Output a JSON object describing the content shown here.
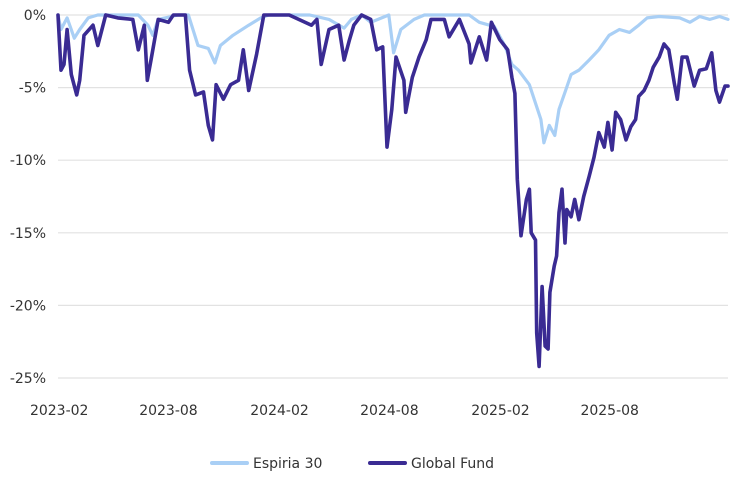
{
  "chart_data": {
    "type": "line",
    "title": "",
    "xlabel": "",
    "ylabel": "",
    "ylim": [
      -25,
      0
    ],
    "y_ticks": [
      0,
      -5,
      -10,
      -15,
      -20,
      -25
    ],
    "y_tick_labels": [
      "0%",
      "-5%",
      "-10%",
      "-15%",
      "-20%",
      "-25%"
    ],
    "x_ticks": [
      "2023-02-01",
      "2023-08-01",
      "2024-02-01",
      "2024-08-01",
      "2025-02-01",
      "2025-08-01"
    ],
    "x_tick_labels": [
      "2023-02",
      "2023-08",
      "2024-02",
      "2024-08",
      "2025-02",
      "2025-08"
    ],
    "xlim": [
      "2023-01-30",
      "2026-02-13"
    ],
    "grid": "horizontal",
    "legend_position": "bottom",
    "series": [
      {
        "name": "Espiria 30",
        "color": "#a9cff5",
        "points": [
          [
            "2023-01-30",
            0
          ],
          [
            "2023-02-04",
            -1.0
          ],
          [
            "2023-02-14",
            -0.2
          ],
          [
            "2023-02-26",
            -1.6
          ],
          [
            "2023-03-07",
            -1.0
          ],
          [
            "2023-03-21",
            -0.2
          ],
          [
            "2023-04-06",
            0
          ],
          [
            "2023-06-12",
            0
          ],
          [
            "2023-06-28",
            -0.7
          ],
          [
            "2023-07-06",
            -1.4
          ],
          [
            "2023-07-15",
            -0.3
          ],
          [
            "2023-08-17",
            0
          ],
          [
            "2023-09-03",
            0
          ],
          [
            "2023-09-19",
            -2.1
          ],
          [
            "2023-10-06",
            -2.3
          ],
          [
            "2023-10-17",
            -3.3
          ],
          [
            "2023-10-26",
            -2.1
          ],
          [
            "2023-11-16",
            -1.4
          ],
          [
            "2023-12-12",
            -0.7
          ],
          [
            "2024-01-01",
            -0.2
          ],
          [
            "2024-01-14",
            0
          ],
          [
            "2024-03-22",
            0
          ],
          [
            "2024-04-23",
            -0.3
          ],
          [
            "2024-05-18",
            -0.9
          ],
          [
            "2024-05-30",
            -0.3
          ],
          [
            "2024-06-16",
            0
          ],
          [
            "2024-07-01",
            -0.5
          ],
          [
            "2024-07-31",
            0
          ],
          [
            "2024-08-08",
            -2.6
          ],
          [
            "2024-08-20",
            -1.0
          ],
          [
            "2024-09-11",
            -0.3
          ],
          [
            "2024-09-28",
            0
          ],
          [
            "2024-12-11",
            0
          ],
          [
            "2024-12-28",
            -0.5
          ],
          [
            "2025-01-22",
            -0.8
          ],
          [
            "2025-02-08",
            -2.1
          ],
          [
            "2025-02-20",
            -3.4
          ],
          [
            "2025-03-03",
            -3.8
          ],
          [
            "2025-03-21",
            -4.8
          ],
          [
            "2025-04-01",
            -6.2
          ],
          [
            "2025-04-09",
            -7.2
          ],
          [
            "2025-04-14",
            -8.8
          ],
          [
            "2025-04-23",
            -7.6
          ],
          [
            "2025-05-02",
            -8.3
          ],
          [
            "2025-05-09",
            -6.5
          ],
          [
            "2025-05-20",
            -5.2
          ],
          [
            "2025-05-29",
            -4.1
          ],
          [
            "2025-06-11",
            -3.8
          ],
          [
            "2025-06-28",
            -3.1
          ],
          [
            "2025-07-14",
            -2.4
          ],
          [
            "2025-07-31",
            -1.4
          ],
          [
            "2025-08-17",
            -1.0
          ],
          [
            "2025-09-03",
            -1.2
          ],
          [
            "2025-09-18",
            -0.7
          ],
          [
            "2025-10-02",
            -0.2
          ],
          [
            "2025-10-22",
            -0.1
          ],
          [
            "2025-11-25",
            -0.2
          ],
          [
            "2025-12-12",
            -0.5
          ],
          [
            "2025-12-28",
            -0.1
          ],
          [
            "2026-01-14",
            -0.3
          ],
          [
            "2026-01-30",
            -0.1
          ],
          [
            "2026-02-13",
            -0.3
          ]
        ]
      },
      {
        "name": "Global Fund",
        "color": "#3a2b93",
        "points": [
          [
            "2023-01-30",
            0
          ],
          [
            "2023-02-04",
            -3.8
          ],
          [
            "2023-02-09",
            -3.4
          ],
          [
            "2023-02-14",
            -1.0
          ],
          [
            "2023-02-21",
            -4.1
          ],
          [
            "2023-03-02",
            -5.5
          ],
          [
            "2023-03-07",
            -4.5
          ],
          [
            "2023-03-14",
            -1.4
          ],
          [
            "2023-03-29",
            -0.7
          ],
          [
            "2023-04-06",
            -2.1
          ],
          [
            "2023-04-19",
            0
          ],
          [
            "2023-05-09",
            -0.2
          ],
          [
            "2023-06-03",
            -0.3
          ],
          [
            "2023-06-12",
            -2.4
          ],
          [
            "2023-06-22",
            -0.7
          ],
          [
            "2023-06-27",
            -4.5
          ],
          [
            "2023-07-03",
            -3.1
          ],
          [
            "2023-07-15",
            -0.3
          ],
          [
            "2023-08-01",
            -0.5
          ],
          [
            "2023-08-09",
            0
          ],
          [
            "2023-08-29",
            0
          ],
          [
            "2023-09-05",
            -3.8
          ],
          [
            "2023-09-15",
            -5.5
          ],
          [
            "2023-09-28",
            -5.3
          ],
          [
            "2023-10-06",
            -7.6
          ],
          [
            "2023-10-13",
            -8.6
          ],
          [
            "2023-10-19",
            -4.8
          ],
          [
            "2023-10-31",
            -5.8
          ],
          [
            "2023-11-12",
            -4.8
          ],
          [
            "2023-11-25",
            -4.5
          ],
          [
            "2023-12-03",
            -2.4
          ],
          [
            "2023-12-12",
            -5.2
          ],
          [
            "2023-12-25",
            -2.7
          ],
          [
            "2024-01-06",
            0
          ],
          [
            "2024-02-17",
            0
          ],
          [
            "2024-03-25",
            -0.7
          ],
          [
            "2024-04-03",
            -0.3
          ],
          [
            "2024-04-10",
            -3.4
          ],
          [
            "2024-04-23",
            -1.0
          ],
          [
            "2024-05-09",
            -0.7
          ],
          [
            "2024-05-18",
            -3.1
          ],
          [
            "2024-05-27",
            -1.7
          ],
          [
            "2024-06-03",
            -0.7
          ],
          [
            "2024-06-16",
            0
          ],
          [
            "2024-07-01",
            -0.3
          ],
          [
            "2024-07-11",
            -2.4
          ],
          [
            "2024-07-21",
            -2.2
          ],
          [
            "2024-07-28",
            -9.1
          ],
          [
            "2024-08-05",
            -6.5
          ],
          [
            "2024-08-12",
            -2.9
          ],
          [
            "2024-08-25",
            -4.5
          ],
          [
            "2024-08-28",
            -6.7
          ],
          [
            "2024-09-08",
            -4.3
          ],
          [
            "2024-09-19",
            -2.9
          ],
          [
            "2024-10-01",
            -1.7
          ],
          [
            "2024-10-09",
            -0.3
          ],
          [
            "2024-10-31",
            -0.3
          ],
          [
            "2024-11-08",
            -1.5
          ],
          [
            "2024-11-25",
            -0.3
          ],
          [
            "2024-12-11",
            -2.0
          ],
          [
            "2024-12-14",
            -3.3
          ],
          [
            "2024-12-28",
            -1.5
          ],
          [
            "2025-01-09",
            -3.1
          ],
          [
            "2025-01-17",
            -0.5
          ],
          [
            "2025-01-31",
            -1.7
          ],
          [
            "2025-02-13",
            -2.4
          ],
          [
            "2025-02-20",
            -4.3
          ],
          [
            "2025-02-25",
            -5.4
          ],
          [
            "2025-03-01",
            -11.3
          ],
          [
            "2025-03-07",
            -15.2
          ],
          [
            "2025-03-16",
            -12.7
          ],
          [
            "2025-03-21",
            -12.0
          ],
          [
            "2025-03-24",
            -15.0
          ],
          [
            "2025-03-31",
            -15.5
          ],
          [
            "2025-04-02",
            -21.9
          ],
          [
            "2025-04-06",
            -24.2
          ],
          [
            "2025-04-11",
            -18.7
          ],
          [
            "2025-04-16",
            -22.8
          ],
          [
            "2025-04-21",
            -23.0
          ],
          [
            "2025-04-24",
            -19.1
          ],
          [
            "2025-05-01",
            -17.3
          ],
          [
            "2025-05-05",
            -16.6
          ],
          [
            "2025-05-09",
            -13.6
          ],
          [
            "2025-05-14",
            -12.0
          ],
          [
            "2025-05-19",
            -15.7
          ],
          [
            "2025-05-22",
            -13.4
          ],
          [
            "2025-05-29",
            -13.9
          ],
          [
            "2025-06-04",
            -12.7
          ],
          [
            "2025-06-11",
            -14.1
          ],
          [
            "2025-06-19",
            -12.5
          ],
          [
            "2025-06-28",
            -11.1
          ],
          [
            "2025-07-06",
            -9.8
          ],
          [
            "2025-07-14",
            -8.1
          ],
          [
            "2025-07-23",
            -9.1
          ],
          [
            "2025-07-29",
            -7.4
          ],
          [
            "2025-08-05",
            -9.3
          ],
          [
            "2025-08-11",
            -6.7
          ],
          [
            "2025-08-19",
            -7.2
          ],
          [
            "2025-08-28",
            -8.6
          ],
          [
            "2025-09-05",
            -7.7
          ],
          [
            "2025-09-13",
            -7.2
          ],
          [
            "2025-09-18",
            -5.6
          ],
          [
            "2025-09-27",
            -5.2
          ],
          [
            "2025-10-05",
            -4.5
          ],
          [
            "2025-10-12",
            -3.6
          ],
          [
            "2025-10-22",
            -2.9
          ],
          [
            "2025-10-30",
            -2.0
          ],
          [
            "2025-11-07",
            -2.4
          ],
          [
            "2025-11-16",
            -4.7
          ],
          [
            "2025-11-21",
            -5.8
          ],
          [
            "2025-11-29",
            -2.9
          ],
          [
            "2025-12-07",
            -2.9
          ],
          [
            "2025-12-19",
            -4.9
          ],
          [
            "2025-12-28",
            -3.8
          ],
          [
            "2026-01-08",
            -3.7
          ],
          [
            "2026-01-17",
            -2.6
          ],
          [
            "2026-01-24",
            -5.2
          ],
          [
            "2026-01-30",
            -6.0
          ],
          [
            "2026-02-08",
            -4.9
          ],
          [
            "2026-02-13",
            -4.9
          ]
        ]
      }
    ]
  }
}
